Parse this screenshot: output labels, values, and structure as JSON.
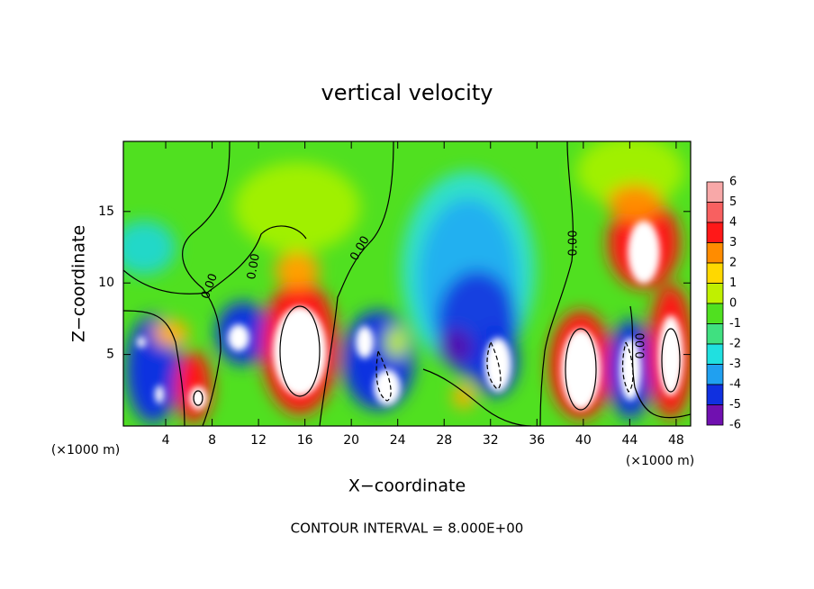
{
  "chart_data": {
    "type": "contour",
    "title": "vertical velocity",
    "x_label": "X−coordinate",
    "y_label": "Z−coordinate",
    "x_unit": "(×1000 m)",
    "y_unit": "(×1000 m)",
    "xlim": [
      0.35,
      49.25
    ],
    "ylim": [
      0,
      19.9
    ],
    "xticks": [
      4,
      8,
      12,
      16,
      20,
      24,
      28,
      32,
      36,
      40,
      44,
      48
    ],
    "yticks": [
      5,
      10,
      15
    ],
    "contour_labels": [
      "0.00",
      "0.00",
      "0.00",
      "0.00",
      "0.00"
    ],
    "footnote": "CONTOUR INTERVAL = 8.000E+00",
    "colorbar": {
      "levels": [
        6,
        5,
        4,
        3,
        2,
        1,
        0,
        -1,
        -2,
        -3,
        -4,
        -5,
        -6
      ],
      "colors": [
        "#f8a8a8",
        "#f86060",
        "#ff1818",
        "#ff8c00",
        "#ffd800",
        "#c0f000",
        "#50e020",
        "#40e080",
        "#20e0e0",
        "#20a0f0",
        "#1030e0",
        "#7010b0"
      ]
    }
  }
}
